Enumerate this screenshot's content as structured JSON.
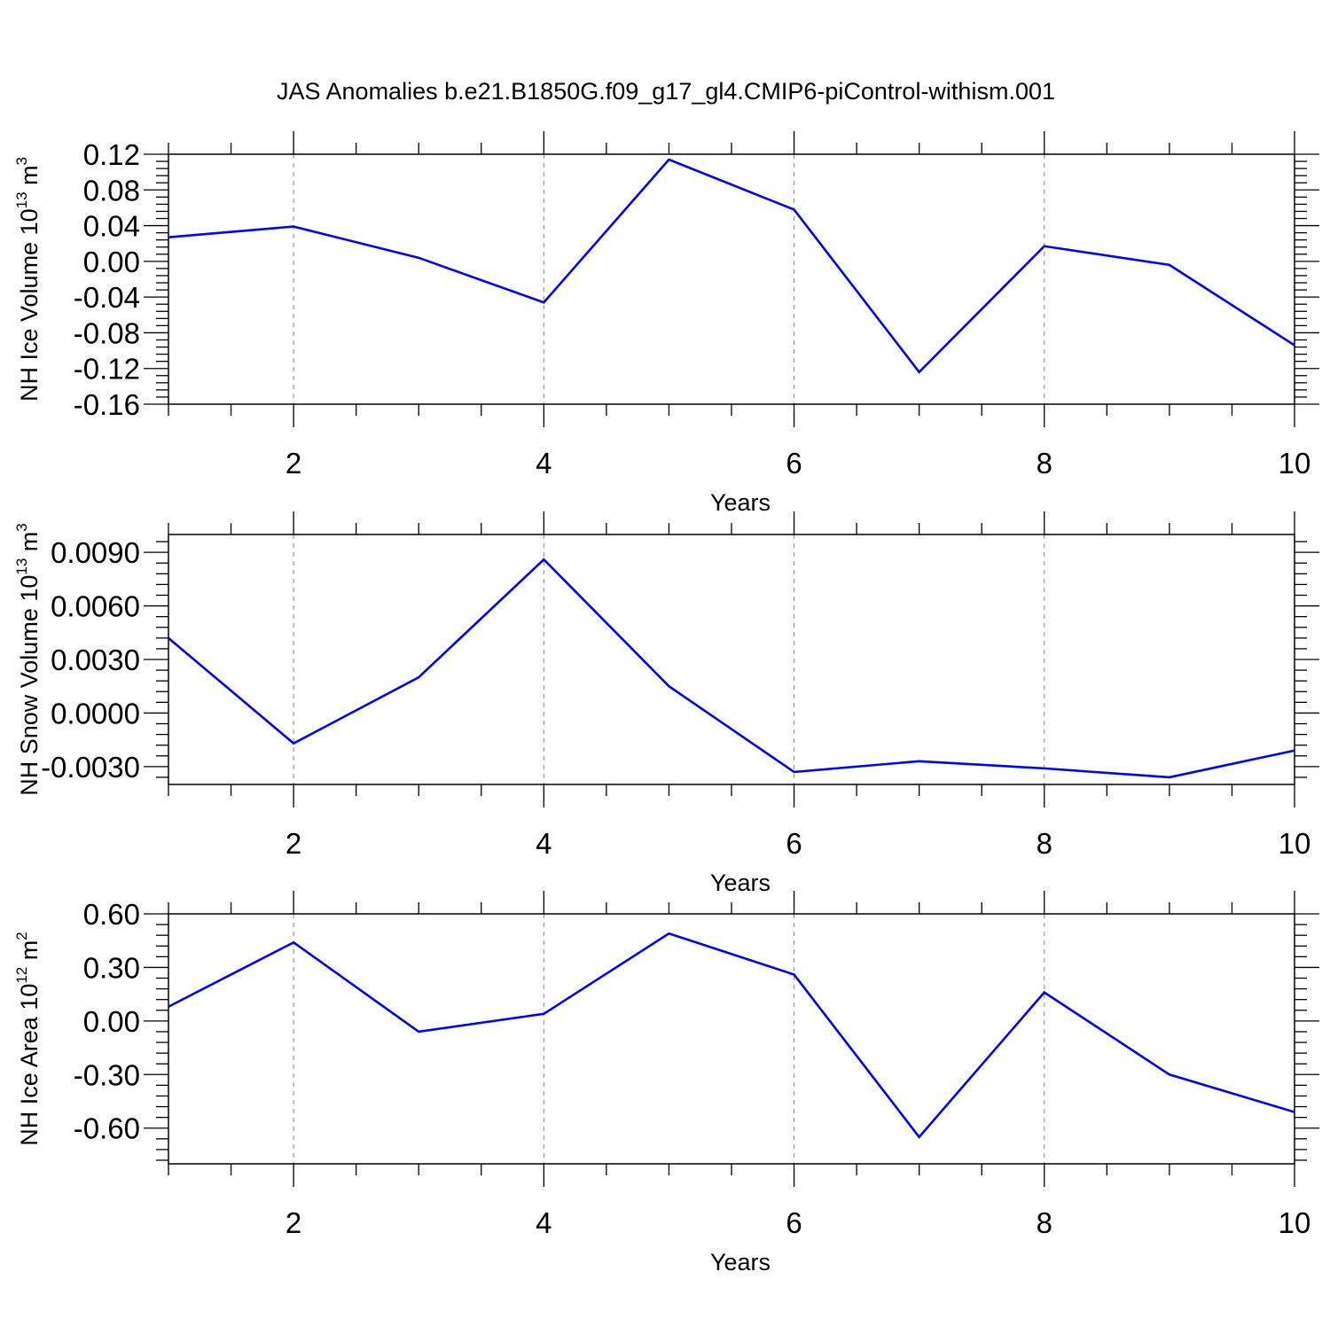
{
  "title": "JAS Anomalies b.e21.B1850G.f09_g17_gl4.CMIP6-piControl-withism.001",
  "colors": {
    "line": "#0000ff",
    "axis": "#000000",
    "grid": "#888888"
  },
  "chart_data": [
    {
      "type": "line",
      "ylabel": {
        "text": "NH Ice Volume 10",
        "sup": "13",
        "unit": " m",
        "unit_sup": "3"
      },
      "xlabel": "Years",
      "xlim": [
        1,
        10
      ],
      "ylim": [
        -0.16,
        0.12
      ],
      "xticks": [
        2,
        4,
        6,
        8,
        10
      ],
      "yticks": [
        "0.12",
        "0.08",
        "0.04",
        "0.00",
        "-0.04",
        "-0.08",
        "-0.12",
        "-0.16"
      ],
      "ytick_values": [
        0.12,
        0.08,
        0.04,
        0.0,
        -0.04,
        -0.08,
        -0.12,
        -0.16
      ],
      "series": [
        {
          "name": "NH Ice Volume",
          "x": [
            1,
            2,
            3,
            4,
            5,
            6,
            7,
            8,
            9,
            10
          ],
          "values": [
            0.027,
            0.039,
            0.004,
            -0.046,
            0.114,
            0.058,
            -0.124,
            0.017,
            -0.004,
            -0.094
          ]
        }
      ]
    },
    {
      "type": "line",
      "ylabel": {
        "text": "NH Snow Volume 10",
        "sup": "13",
        "unit": " m",
        "unit_sup": "3"
      },
      "xlabel": "Years",
      "xlim": [
        1,
        10
      ],
      "ylim": [
        -0.004,
        0.01
      ],
      "xticks": [
        2,
        4,
        6,
        8,
        10
      ],
      "yticks": [
        "0.0090",
        "0.0060",
        "0.0030",
        "0.0000",
        "-0.0030"
      ],
      "ytick_values": [
        0.009,
        0.006,
        0.003,
        0.0,
        -0.003
      ],
      "series": [
        {
          "name": "NH Snow Volume",
          "x": [
            1,
            2,
            3,
            4,
            5,
            6,
            7,
            8,
            9,
            10
          ],
          "values": [
            0.0042,
            -0.0017,
            0.002,
            0.0086,
            0.0015,
            -0.0033,
            -0.0027,
            -0.0031,
            -0.0036,
            -0.0021
          ]
        }
      ]
    },
    {
      "type": "line",
      "ylabel": {
        "text": "NH Ice Area 10",
        "sup": "12",
        "unit": " m",
        "unit_sup": "2"
      },
      "xlabel": "Years",
      "xlim": [
        1,
        10
      ],
      "ylim": [
        -0.8,
        0.6
      ],
      "xticks": [
        2,
        4,
        6,
        8,
        10
      ],
      "yticks": [
        "0.60",
        "0.30",
        "0.00",
        "-0.30",
        "-0.60"
      ],
      "ytick_values": [
        0.6,
        0.3,
        0.0,
        -0.3,
        -0.6
      ],
      "series": [
        {
          "name": "NH Ice Area",
          "x": [
            1,
            2,
            3,
            4,
            5,
            6,
            7,
            8,
            9,
            10
          ],
          "values": [
            0.08,
            0.44,
            -0.06,
            0.04,
            0.49,
            0.26,
            -0.65,
            0.16,
            -0.3,
            -0.51
          ]
        }
      ]
    }
  ]
}
